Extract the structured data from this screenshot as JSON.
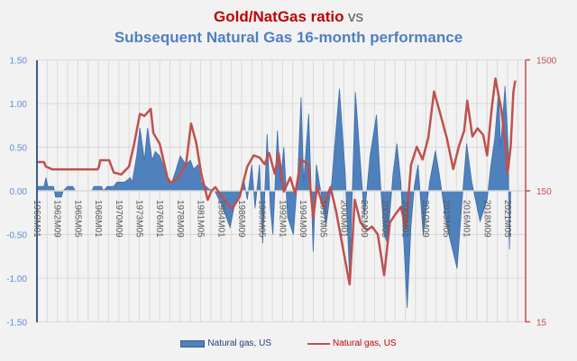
{
  "chart_data": {
    "type": "area+line",
    "title": "Gold/NatGas ratio",
    "title_suffix": "vs",
    "subtitle": "Subsequent Natural Gas 16-month performance",
    "left_axis": {
      "ylim": [
        -1.5,
        1.5
      ],
      "ticks": [
        "1.50",
        "1.00",
        "0.50",
        "0.00",
        "-0.50",
        "-1.00",
        "-1.50"
      ],
      "color": "#5b8fd0"
    },
    "right_axis": {
      "scale": "log",
      "ylim": [
        15,
        1500
      ],
      "ticks": [
        "1500",
        "150",
        "15"
      ],
      "color": "#c0504d"
    },
    "x_ticks": [
      "1960M01",
      "1962M09",
      "1965M05",
      "1968M01",
      "1970M09",
      "1973M05",
      "1976M01",
      "1978M09",
      "1981M05",
      "1984M01",
      "1986M09",
      "1989M05",
      "1992M01",
      "1994M09",
      "1997M05",
      "2000M01",
      "2002M09",
      "2005M05",
      "2008M01",
      "2010M09",
      "2013M05",
      "2016M01",
      "2018M09",
      "2021M05"
    ],
    "grid": true,
    "legend_placement": "bottom",
    "series": [
      {
        "name": "Natural gas, US",
        "type": "area",
        "axis": "left",
        "color": "#4f81bd",
        "points": [
          [
            "1960M01",
            0.05
          ],
          [
            "1960M12",
            0.05
          ],
          [
            "1961M03",
            0.15
          ],
          [
            "1961M06",
            0.05
          ],
          [
            "1962M03",
            0.05
          ],
          [
            "1962M06",
            -0.07
          ],
          [
            "1963M03",
            -0.07
          ],
          [
            "1963M06",
            0
          ],
          [
            "1964M01",
            0.05
          ],
          [
            "1964M09",
            0.05
          ],
          [
            "1965M01",
            0
          ],
          [
            "1967M03",
            0
          ],
          [
            "1967M06",
            0.05
          ],
          [
            "1968M06",
            0.05
          ],
          [
            "1968M09",
            0
          ],
          [
            "1969M03",
            0.05
          ],
          [
            "1970M01",
            0.05
          ],
          [
            "1970M06",
            0.1
          ],
          [
            "1971M06",
            0.1
          ],
          [
            "1972M03",
            0.15
          ],
          [
            "1972M06",
            0.1
          ],
          [
            "1973M01",
            0.4
          ],
          [
            "1973M06",
            0.72
          ],
          [
            "1974M01",
            0.35
          ],
          [
            "1974M06",
            0.72
          ],
          [
            "1975M01",
            0.35
          ],
          [
            "1975M06",
            0.45
          ],
          [
            "1976M01",
            0.4
          ],
          [
            "1976M09",
            0.25
          ],
          [
            "1977M06",
            0.05
          ],
          [
            "1978M03",
            0.25
          ],
          [
            "1978M09",
            0.4
          ],
          [
            "1979M06",
            0.3
          ],
          [
            "1980M01",
            0.35
          ],
          [
            "1980M06",
            0.25
          ],
          [
            "1981M01",
            0.3
          ],
          [
            "1981M06",
            0.1
          ],
          [
            "1982M06",
            0.02
          ],
          [
            "1983M03",
            0
          ],
          [
            "1984M01",
            -0.15
          ],
          [
            "1984M09",
            -0.3
          ],
          [
            "1985M03",
            -0.42
          ],
          [
            "1985M09",
            -0.2
          ],
          [
            "1986M06",
            -0.05
          ],
          [
            "1987M01",
            0.1
          ],
          [
            "1987M06",
            -0.1
          ],
          [
            "1988M01",
            0.3
          ],
          [
            "1988M06",
            -0.2
          ],
          [
            "1989M01",
            0.3
          ],
          [
            "1989M06",
            -0.6
          ],
          [
            "1990M01",
            0.65
          ],
          [
            "1990M06",
            -0.2
          ],
          [
            "1990M10",
            -0.5
          ],
          [
            "1991M05",
            0.69
          ],
          [
            "1991M10",
            0.1
          ],
          [
            "1992M03",
            0.5
          ],
          [
            "1992M09",
            -0.3
          ],
          [
            "1993M06",
            -0.5
          ],
          [
            "1994M01",
            0.2
          ],
          [
            "1994M06",
            1.07
          ],
          [
            "1994M10",
            0.1
          ],
          [
            "1995M06",
            0.88
          ],
          [
            "1996M01",
            -0.7
          ],
          [
            "1996M06",
            0.3
          ],
          [
            "1997M03",
            -0.1
          ],
          [
            "1997M09",
            -0.4
          ],
          [
            "1998M06",
            0.1
          ],
          [
            "1999M06",
            1.17
          ],
          [
            "2000M03",
            0.2
          ],
          [
            "2000M10",
            -1.0
          ],
          [
            "2001M07",
            1.13
          ],
          [
            "2002M03",
            0.3
          ],
          [
            "2002M09",
            -0.3
          ],
          [
            "2003M06",
            0.4
          ],
          [
            "2004M04",
            0.87
          ],
          [
            "2004M10",
            0.1
          ],
          [
            "2005M04",
            -0.5
          ],
          [
            "2005M09",
            -0.6
          ],
          [
            "2006M06",
            0.2
          ],
          [
            "2006M12",
            0.54
          ],
          [
            "2007M06",
            0.1
          ],
          [
            "2008M04",
            -1.34
          ],
          [
            "2008M10",
            -0.4
          ],
          [
            "2009M03",
            0.05
          ],
          [
            "2009M09",
            0.3
          ],
          [
            "2010M05",
            -0.5
          ],
          [
            "2011M03",
            0.1
          ],
          [
            "2011M12",
            0.46
          ],
          [
            "2012M06",
            0.2
          ],
          [
            "2013M06",
            -0.4
          ],
          [
            "2014M10",
            -0.89
          ],
          [
            "2015M06",
            -0.1
          ],
          [
            "2016M01",
            0.54
          ],
          [
            "2016M09",
            0.1
          ],
          [
            "2017M10",
            -0.35
          ],
          [
            "2018M09",
            -0.1
          ],
          [
            "2019M03",
            0.3
          ],
          [
            "2019M09",
            0.6
          ],
          [
            "2020M03",
            1.15
          ],
          [
            "2020M06",
            0.5
          ],
          [
            "2021M01",
            1.2
          ],
          [
            "2021M06",
            0.5
          ],
          [
            "2021M08",
            -0.67
          ],
          [
            "2021M10",
            0
          ]
        ]
      },
      {
        "name": "Natural gas, US",
        "type": "line",
        "axis": "right",
        "color": "#c0504d",
        "points": [
          [
            "1960M01",
            249
          ],
          [
            "1960M12",
            249
          ],
          [
            "1961M03",
            230
          ],
          [
            "1962M01",
            219
          ],
          [
            "1967M12",
            219
          ],
          [
            "1968M02",
            230
          ],
          [
            "1968M04",
            257
          ],
          [
            "1969M06",
            257
          ],
          [
            "1970M01",
            207
          ],
          [
            "1971M01",
            200
          ],
          [
            "1972M01",
            230
          ],
          [
            "1972M09",
            342
          ],
          [
            "1973M06",
            580
          ],
          [
            "1974M01",
            560
          ],
          [
            "1974M11",
            634
          ],
          [
            "1975M03",
            414
          ],
          [
            "1976M01",
            342
          ],
          [
            "1977M01",
            190
          ],
          [
            "1977M06",
            173
          ],
          [
            "1978M06",
            190
          ],
          [
            "1979M06",
            237
          ],
          [
            "1980M02",
            490
          ],
          [
            "1980M10",
            350
          ],
          [
            "1981M06",
            202
          ],
          [
            "1982M04",
            128
          ],
          [
            "1982M10",
            150
          ],
          [
            "1983M04",
            160
          ],
          [
            "1984M01",
            138
          ],
          [
            "1985M06",
            109
          ],
          [
            "1986M06",
            135
          ],
          [
            "1987M06",
            230
          ],
          [
            "1988M04",
            280
          ],
          [
            "1989M01",
            270
          ],
          [
            "1989M09",
            240
          ],
          [
            "1990M04",
            292
          ],
          [
            "1991M01",
            203
          ],
          [
            "1991M07",
            290
          ],
          [
            "1992M03",
            148
          ],
          [
            "1993M01",
            190
          ],
          [
            "1993M09",
            143
          ],
          [
            "1994M06",
            260
          ],
          [
            "1995M05",
            240
          ],
          [
            "1996M01",
            93
          ],
          [
            "1996M07",
            160
          ],
          [
            "1997M05",
            113
          ],
          [
            "1998M04",
            160
          ],
          [
            "1999M01",
            104
          ],
          [
            "2000M10",
            29
          ],
          [
            "2001M06",
            128
          ],
          [
            "2002M03",
            86
          ],
          [
            "2003M01",
            75
          ],
          [
            "2003M09",
            80
          ],
          [
            "2004M06",
            70
          ],
          [
            "2005M04",
            34
          ],
          [
            "2006M01",
            86
          ],
          [
            "2006M10",
            100
          ],
          [
            "2007M06",
            113
          ],
          [
            "2008M02",
            78
          ],
          [
            "2008M10",
            237
          ],
          [
            "2009M07",
            325
          ],
          [
            "2010M04",
            260
          ],
          [
            "2011M01",
            382
          ],
          [
            "2011M10",
            860
          ],
          [
            "2012M07",
            600
          ],
          [
            "2013M06",
            380
          ],
          [
            "2014M04",
            220
          ],
          [
            "2015M01",
            330
          ],
          [
            "2015M09",
            430
          ],
          [
            "2016M02",
            730
          ],
          [
            "2016M10",
            390
          ],
          [
            "2017M06",
            450
          ],
          [
            "2018M03",
            400
          ],
          [
            "2018M09",
            280
          ],
          [
            "2019M04",
            630
          ],
          [
            "2019M10",
            1080
          ],
          [
            "2020M03",
            800
          ],
          [
            "2020M07",
            640
          ],
          [
            "2021M01",
            350
          ],
          [
            "2021M05",
            203
          ],
          [
            "2021M10",
            330
          ],
          [
            "2022M02",
            850
          ],
          [
            "2022M05",
            1040
          ]
        ]
      }
    ]
  }
}
